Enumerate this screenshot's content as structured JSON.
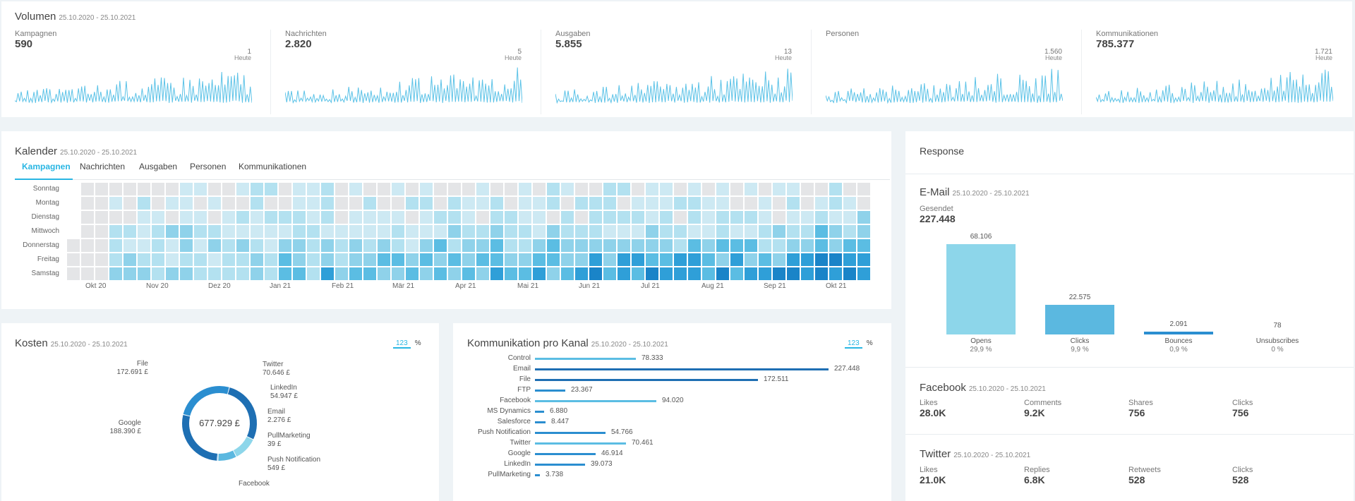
{
  "volumen": {
    "title": "Volumen",
    "range": "25.10.2020 - 25.10.2021",
    "today_label": "Heute",
    "metrics": [
      {
        "label": "Kampagnen",
        "value": "590",
        "today": "1"
      },
      {
        "label": "Nachrichten",
        "value": "2.820",
        "today": "5"
      },
      {
        "label": "Ausgaben",
        "value": "5.855",
        "today": "13"
      },
      {
        "label": "Personen",
        "value": "",
        "today": "1.560"
      },
      {
        "label": "Kommunikationen",
        "value": "785.377",
        "today": "1.721"
      }
    ]
  },
  "kalender": {
    "title": "Kalender",
    "range": "25.10.2020 - 25.10.2021",
    "tabs": [
      "Kampagnen",
      "Nachrichten",
      "Ausgaben",
      "Personen",
      "Kommunikationen"
    ],
    "active_tab": 0,
    "days": [
      "Sonntag",
      "Montag",
      "Dienstag",
      "Mittwoch",
      "Donnerstag",
      "Freitag",
      "Samstag"
    ],
    "months": [
      "Okt 20",
      "Nov 20",
      "Dez 20",
      "Jan 21",
      "Feb 21",
      "Mär 21",
      "Apr 21",
      "Mai 21",
      "Jun 21",
      "Jul 21",
      "Aug 21",
      "Sep 21",
      "Okt 21"
    ]
  },
  "response": {
    "title": "Response",
    "email": {
      "title": "E-Mail",
      "range": "25.10.2020 - 25.10.2021",
      "sent_label": "Gesendet",
      "sent_value": "227.448",
      "bars": [
        {
          "label": "Opens",
          "value": "68.106",
          "pct": "29,9 %",
          "num": 68106,
          "color": "#8dd6ea"
        },
        {
          "label": "Clicks",
          "value": "22.575",
          "pct": "9,9 %",
          "num": 22575,
          "color": "#5bb8e0"
        },
        {
          "label": "Bounces",
          "value": "2.091",
          "pct": "0,9 %",
          "num": 2091,
          "color": "#2b8ed0"
        },
        {
          "label": "Unsubscribes",
          "value": "78",
          "pct": "0 %",
          "num": 78,
          "color": "#1e6fb3"
        }
      ]
    },
    "facebook": {
      "title": "Facebook",
      "range": "25.10.2020 - 25.10.2021",
      "stats": [
        {
          "label": "Likes",
          "value": "28.0K"
        },
        {
          "label": "Comments",
          "value": "9.2K"
        },
        {
          "label": "Shares",
          "value": "756"
        },
        {
          "label": "Clicks",
          "value": "756"
        }
      ]
    },
    "twitter": {
      "title": "Twitter",
      "range": "25.10.2020 - 25.10.2021",
      "stats": [
        {
          "label": "Likes",
          "value": "21.0K"
        },
        {
          "label": "Replies",
          "value": "6.8K"
        },
        {
          "label": "Retweets",
          "value": "528"
        },
        {
          "label": "Clicks",
          "value": "528"
        }
      ]
    }
  },
  "kosten": {
    "title": "Kosten",
    "range": "25.10.2020 - 25.10.2021",
    "toggle_num": "123",
    "toggle_pct": "%",
    "total": "677.929 £",
    "segments": [
      {
        "name": "Google",
        "value": "188.390 £",
        "num": 188390,
        "color": "#1e6fb3"
      },
      {
        "name": "Twitter",
        "value": "70.646 £",
        "num": 70646,
        "color": "#8dd6ea"
      },
      {
        "name": "LinkedIn",
        "value": "54.947 £",
        "num": 54947,
        "color": "#5bb8e0"
      },
      {
        "name": "Email",
        "value": "2.276 £",
        "num": 2276,
        "color": "#2b8ed0"
      },
      {
        "name": "PullMarketing",
        "value": "39 £",
        "num": 39,
        "color": "#2b8ed0"
      },
      {
        "name": "Push Notification",
        "value": "549 £",
        "num": 549,
        "color": "#2b8ed0"
      },
      {
        "name": "Facebook",
        "value": "",
        "num": 188000,
        "color": "#1e6fb3"
      },
      {
        "name": "File",
        "value": "172.691 £",
        "num": 172691,
        "color": "#2b8ed0"
      }
    ]
  },
  "kanal": {
    "title": "Kommunikation pro Kanal",
    "range": "25.10.2020 - 25.10.2021",
    "toggle_num": "123",
    "toggle_pct": "%",
    "rows": [
      {
        "name": "Control",
        "value": "78.333",
        "num": 78333
      },
      {
        "name": "Email",
        "value": "227.448",
        "num": 227448
      },
      {
        "name": "File",
        "value": "172.511",
        "num": 172511
      },
      {
        "name": "FTP",
        "value": "23.367",
        "num": 23367
      },
      {
        "name": "Facebook",
        "value": "94.020",
        "num": 94020
      },
      {
        "name": "MS Dynamics",
        "value": "6.880",
        "num": 6880
      },
      {
        "name": "Salesforce",
        "value": "8.447",
        "num": 8447
      },
      {
        "name": "Push Notification",
        "value": "54.766",
        "num": 54766
      },
      {
        "name": "Twitter",
        "value": "70.461",
        "num": 70461
      },
      {
        "name": "Google",
        "value": "46.914",
        "num": 46914
      },
      {
        "name": "LinkedIn",
        "value": "39.073",
        "num": 39073
      },
      {
        "name": "PullMarketing",
        "value": "3.738",
        "num": 3738
      }
    ]
  }
}
